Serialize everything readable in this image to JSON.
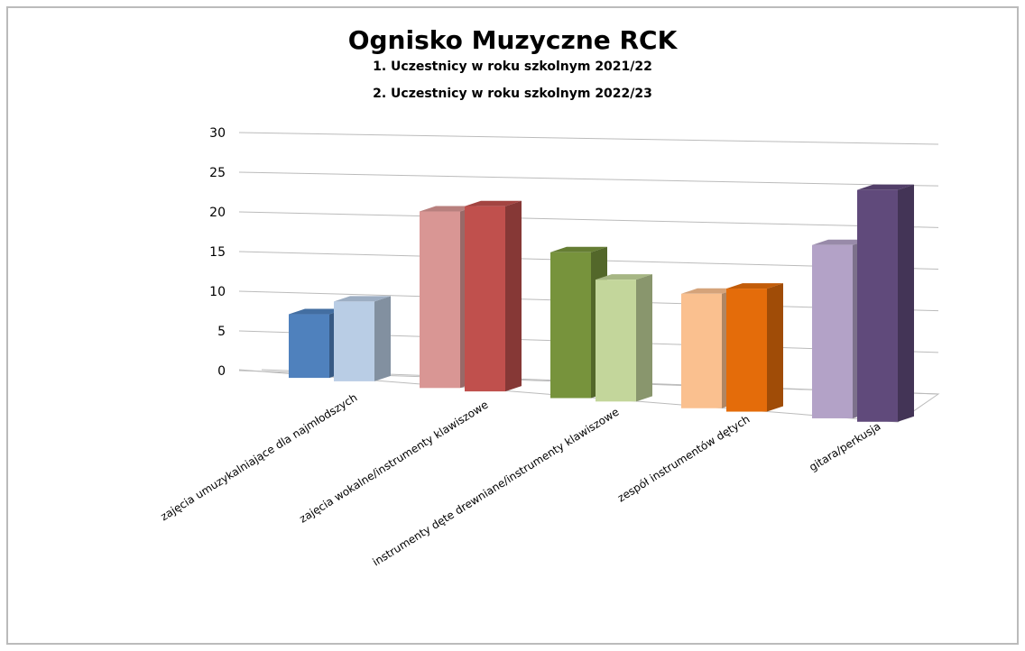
{
  "chart_data": {
    "type": "bar3d",
    "title": "Ognisko Muzyczne RCK",
    "categories": [
      "zajęcia umuzykalniające dla najmłodszych",
      "zajęcia wokalne/instrumenty klawiszowe",
      "instrumenty dęte drewniane/instrumenty klawiszowe",
      "zespół instrumentów dętych",
      "gitara/perkusja"
    ],
    "series": [
      {
        "name": "1. Uczestnicy  w roku szkolnym  2021/22",
        "colors": [
          "#4f81bd",
          "#d99694",
          "#77933c",
          "#fac08f",
          "#b3a2c7"
        ],
        "values": [
          8,
          22,
          18,
          14,
          21
        ]
      },
      {
        "name": "2. Uczestnicy  w roku szkolnym  2022/23",
        "colors": [
          "#b9cde5",
          "#c0504d",
          "#c3d69b",
          "#e46c0a",
          "#604a7b"
        ],
        "values": [
          10,
          23,
          15,
          15,
          28
        ]
      }
    ],
    "ylim": [
      0,
      30
    ],
    "yticks": [
      0,
      5,
      10,
      15,
      20,
      25,
      30
    ],
    "grid": true
  }
}
